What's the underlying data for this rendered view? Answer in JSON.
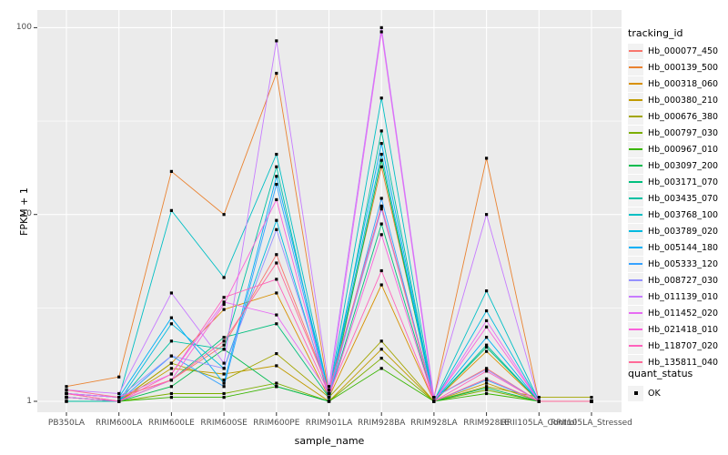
{
  "figure": {
    "panel_bg": "#EBEBEB",
    "grid_color": "#FFFFFF",
    "tick_label_color": "#4D4D4D",
    "point_color": "#000000"
  },
  "axes": {
    "x_title": "sample_name",
    "y_title": "FPKM + 1",
    "y_tick_labels": [
      "1",
      "10",
      "100"
    ]
  },
  "legend": {
    "tracking_title": "tracking_id",
    "quant_title": "quant_status",
    "quant_ok_label": "OK"
  },
  "chart_data": {
    "type": "line",
    "title": "",
    "xlabel": "sample_name",
    "ylabel": "FPKM + 1",
    "y_scale": "log10",
    "y_ticks": [
      1,
      10,
      100
    ],
    "y_minor_ticks": [
      3.162,
      31.62
    ],
    "ylim": [
      0.87,
      125
    ],
    "grid": true,
    "legend_position": "right",
    "point_shape": "square",
    "categories": [
      "PB350LA",
      "RRIM600LA",
      "RRIM600LE",
      "RRIM600SE",
      "RRIM600PE",
      "RRIM901LA",
      "RRIM928BA",
      "RRIM928LA",
      "RRIM928LE",
      "RRII105LA_Control",
      "RRII105LA_Stressed"
    ],
    "series": [
      {
        "name": "Hb_000077_450",
        "color": "#F8766D",
        "values": [
          1.1,
          1.05,
          1.3,
          2.0,
          6.1,
          1.15,
          11.0,
          1.05,
          1.5,
          1.0,
          1.0
        ]
      },
      {
        "name": "Hb_000139_500",
        "color": "#EA8331",
        "values": [
          1.2,
          1.35,
          17.0,
          10.0,
          57.0,
          1.1,
          18.0,
          1.05,
          20.0,
          1.0,
          1.0
        ]
      },
      {
        "name": "Hb_000318_060",
        "color": "#D89000",
        "values": [
          1.1,
          1.0,
          1.6,
          3.1,
          3.8,
          1.05,
          4.2,
          1.0,
          1.85,
          1.0,
          1.0
        ]
      },
      {
        "name": "Hb_000380_210",
        "color": "#C09B00",
        "values": [
          1.05,
          1.0,
          1.5,
          1.4,
          1.55,
          1.0,
          1.9,
          1.0,
          1.25,
          1.0,
          1.0
        ]
      },
      {
        "name": "Hb_000676_380",
        "color": "#A3A500",
        "values": [
          1.05,
          1.0,
          1.6,
          1.3,
          1.8,
          1.05,
          2.1,
          1.0,
          1.2,
          1.05,
          1.05
        ]
      },
      {
        "name": "Hb_000797_030",
        "color": "#7CAE00",
        "values": [
          1.0,
          1.0,
          1.1,
          1.1,
          1.25,
          1.0,
          1.7,
          1.0,
          1.15,
          1.0,
          1.0
        ]
      },
      {
        "name": "Hb_000967_010",
        "color": "#39B600",
        "values": [
          1.0,
          1.0,
          1.05,
          1.05,
          1.2,
          1.0,
          1.5,
          1.0,
          1.1,
          1.0,
          1.0
        ]
      },
      {
        "name": "Hb_003097_200",
        "color": "#00BB4E",
        "values": [
          1.0,
          1.0,
          1.2,
          1.9,
          1.2,
          1.0,
          19.5,
          1.0,
          1.18,
          1.0,
          1.0
        ]
      },
      {
        "name": "Hb_003171_070",
        "color": "#00BF7D",
        "values": [
          1.05,
          1.0,
          1.3,
          2.2,
          2.6,
          1.05,
          8.9,
          1.0,
          1.95,
          1.0,
          1.0
        ]
      },
      {
        "name": "Hb_003435_070",
        "color": "#00C1A3",
        "values": [
          1.0,
          1.0,
          2.1,
          1.9,
          18.0,
          1.0,
          28.0,
          1.0,
          2.0,
          1.0,
          1.0
        ]
      },
      {
        "name": "Hb_003768_100",
        "color": "#00BFC4",
        "values": [
          1.1,
          1.05,
          10.5,
          4.6,
          21.0,
          1.1,
          42.0,
          1.0,
          3.9,
          1.0,
          1.0
        ]
      },
      {
        "name": "Hb_003789_020",
        "color": "#00BAE0",
        "values": [
          1.05,
          1.0,
          2.6,
          1.5,
          9.3,
          1.05,
          21.0,
          1.0,
          3.05,
          1.0,
          1.0
        ]
      },
      {
        "name": "Hb_005144_180",
        "color": "#00B0F6",
        "values": [
          1.1,
          1.05,
          2.8,
          1.25,
          16.0,
          1.1,
          24.0,
          1.0,
          2.2,
          1.0,
          1.0
        ]
      },
      {
        "name": "Hb_005333_120",
        "color": "#35A2FF",
        "values": [
          1.05,
          1.0,
          1.75,
          1.2,
          14.5,
          1.05,
          12.2,
          1.0,
          1.3,
          1.0,
          1.0
        ]
      },
      {
        "name": "Hb_008727_030",
        "color": "#9590FF",
        "values": [
          1.1,
          1.05,
          1.75,
          1.5,
          8.3,
          1.1,
          10.7,
          1.05,
          1.48,
          1.0,
          1.0
        ]
      },
      {
        "name": "Hb_011139_010",
        "color": "#C77CFF",
        "values": [
          1.15,
          1.1,
          3.8,
          1.6,
          85.0,
          1.2,
          100.0,
          1.05,
          10.0,
          1.0,
          1.0
        ]
      },
      {
        "name": "Hb_011452_020",
        "color": "#E76BF3",
        "values": [
          1.1,
          1.05,
          1.4,
          3.4,
          2.9,
          1.1,
          95.0,
          1.0,
          2.7,
          1.0,
          1.0
        ]
      },
      {
        "name": "Hb_021418_010",
        "color": "#FA62DB",
        "values": [
          1.05,
          1.0,
          1.3,
          3.3,
          12.0,
          1.05,
          7.8,
          1.0,
          2.5,
          1.0,
          1.0
        ]
      },
      {
        "name": "Hb_118707_020",
        "color": "#FF62BC",
        "values": [
          1.1,
          1.0,
          1.4,
          3.6,
          4.5,
          1.1,
          5.0,
          1.0,
          1.45,
          1.0,
          1.0
        ]
      },
      {
        "name": "Hb_135811_040",
        "color": "#FF6A98",
        "values": [
          1.15,
          1.05,
          1.3,
          2.1,
          5.5,
          1.15,
          11.1,
          1.0,
          1.32,
          1.0,
          1.0
        ]
      }
    ]
  }
}
